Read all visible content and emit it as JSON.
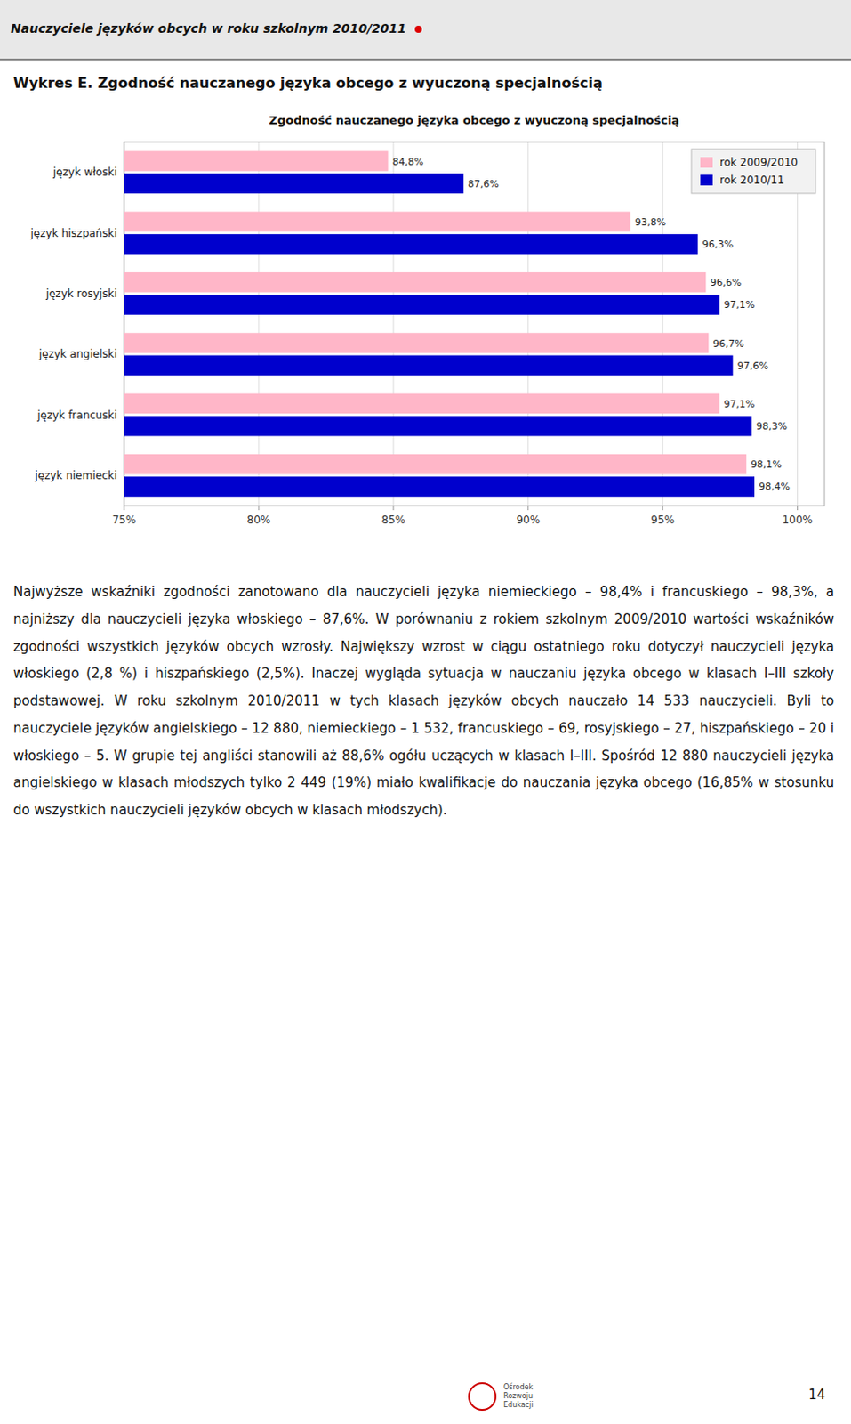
{
  "page": {
    "title": "Nauczyciele języków obcych w roku szkolnym 2010/2011",
    "heading": "Wykres E. Zgodność nauczanego języka obcego z wyuczoną specjalnością",
    "body": "Najwyższe wskaźniki zgodności zanotowano dla nauczycieli języka niemieckiego – 98,4% i francuskiego – 98,3%, a najniższy dla nauczycieli języka włoskiego – 87,6%. W porównaniu z rokiem szkolnym 2009/2010 wartości wskaźników zgodności wszystkich języków obcych wzrosły. Największy wzrost w ciągu ostatniego roku dotyczył nauczycieli języka włoskiego (2,8 %) i hiszpańskiego (2,5%). Inaczej wygląda sytuacja w nauczaniu języka obcego w klasach I–III szkoły podstawowej. W roku szkolnym 2010/2011 w tych klasach języków obcych nauczało 14 533 nauczycieli. Byli to nauczyciele języków angielskiego – 12 880, niemieckiego – 1 532, francuskiego – 69, rosyjskiego – 27, hiszpańskiego – 20 i włoskiego – 5. W grupie tej angliści stanowili aż 88,6% ogółu uczących w klasach I–III. Spośród 12 880 nauczycieli języka angielskiego w klasach młodszych tylko 2 449 (19%) miało kwalifikacje do nauczania języka obcego (16,85% w stosunku do wszystkich nauczycieli języków obcych w klasach młodszych).",
    "page_number": "14",
    "logo": [
      "Ośrodek",
      "Rozwoju",
      "Edukacji"
    ]
  },
  "chart_data": {
    "type": "bar",
    "orientation": "horizontal",
    "title": "Zgodność nauczanego języka obcego z wyuczoną specjalnością",
    "categories": [
      "język włoski",
      "język hiszpański",
      "język rosyjski",
      "język angielski",
      "język francuski",
      "język niemiecki"
    ],
    "series": [
      {
        "name": "rok 2009/2010",
        "color": "#FFB6C8",
        "values": [
          84.8,
          93.8,
          96.6,
          96.7,
          97.1,
          98.1
        ],
        "value_labels": [
          "84,8%",
          "93,8%",
          "96,6%",
          "96,7%",
          "97,1%",
          "98,1%"
        ]
      },
      {
        "name": "rok 2010/11",
        "color": "#0000CD",
        "values": [
          87.6,
          96.3,
          97.1,
          97.6,
          98.3,
          98.4
        ],
        "value_labels": [
          "87,6%",
          "96,3%",
          "97,1%",
          "97,6%",
          "98,3%",
          "98,4%"
        ]
      }
    ],
    "xlim": [
      75,
      101
    ],
    "xticks": [
      {
        "value": 75,
        "label": "75%"
      },
      {
        "value": 80,
        "label": "80%"
      },
      {
        "value": 85,
        "label": "85%"
      },
      {
        "value": 90,
        "label": "90%"
      },
      {
        "value": 95,
        "label": "95%"
      },
      {
        "value": 100,
        "label": "100%"
      }
    ],
    "grid": true,
    "legend": "upper right",
    "data_labels": true
  }
}
